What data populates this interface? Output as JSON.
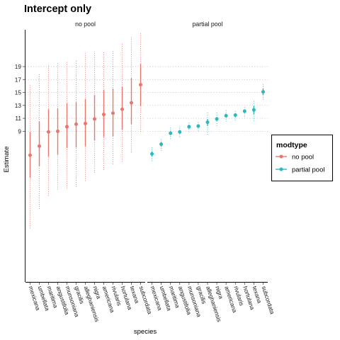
{
  "chart_data": {
    "type": "scatter",
    "title": "Intercept only",
    "xlabel": "species",
    "ylabel": "Estimate",
    "yticks": [
      9,
      11,
      13,
      15,
      17,
      19
    ],
    "ylim": [
      -14.3,
      24.7
    ],
    "grid": "dotted horizontal at y ticks",
    "facets": [
      "no pool",
      "partial pool"
    ],
    "categories": [
      "mexicana",
      "umbellata",
      "maritima",
      "angustifolia",
      "munsoniana",
      "gracilis",
      "alleghaniensis",
      "nigra",
      "americana",
      "rivularis",
      "hortulana",
      "texana",
      "subcordata"
    ],
    "legend": {
      "title": "modtype",
      "position": "right",
      "items": [
        {
          "label": "no pool",
          "color": "#E8766D"
        },
        {
          "label": "partial pool",
          "color": "#2DB8BE"
        }
      ]
    },
    "series": [
      {
        "name": "no pool",
        "facet": "no pool",
        "color": "#E8766D",
        "estimate": [
          5.3,
          6.7,
          8.9,
          9.0,
          9.7,
          10.1,
          10.2,
          10.9,
          11.6,
          11.8,
          12.4,
          13.4,
          16.2
        ],
        "inner_low": [
          1.8,
          3.6,
          5.1,
          5.4,
          6.4,
          6.5,
          6.7,
          7.6,
          8.1,
          8.2,
          9.2,
          10.1,
          12.9
        ],
        "inner_high": [
          8.9,
          10.5,
          12.4,
          12.5,
          13.3,
          13.5,
          14.0,
          14.6,
          15.4,
          15.6,
          15.9,
          17.2,
          19.4
        ],
        "outer_low": [
          -6.0,
          -3.0,
          -1.0,
          0.0,
          0.2,
          0.4,
          1.3,
          2.6,
          3.0,
          3.9,
          4.3,
          5.7,
          8.9
        ],
        "outer_high": [
          16.2,
          17.9,
          19.4,
          19.5,
          19.7,
          20.1,
          21.1,
          21.1,
          21.3,
          21.4,
          22.5,
          23.6,
          24.3
        ]
      },
      {
        "name": "partial pool",
        "facet": "partial pool",
        "color": "#2DB8BE",
        "estimate": [
          5.5,
          7.0,
          8.7,
          8.9,
          9.7,
          9.8,
          10.4,
          10.9,
          11.4,
          11.5,
          12.1,
          12.3,
          15.1
        ],
        "inner_low": [
          5.1,
          6.6,
          8.4,
          8.6,
          9.4,
          9.5,
          9.8,
          10.6,
          11.1,
          11.2,
          11.8,
          11.6,
          14.6
        ],
        "inner_high": [
          5.9,
          7.3,
          9.0,
          9.2,
          10.0,
          10.1,
          10.9,
          11.2,
          11.7,
          11.8,
          12.4,
          12.9,
          15.6
        ],
        "outer_low": [
          4.4,
          6.0,
          7.8,
          8.1,
          8.9,
          9.0,
          8.5,
          9.8,
          10.5,
          10.7,
          11.3,
          10.6,
          13.9
        ],
        "outer_high": [
          6.5,
          7.9,
          9.6,
          9.8,
          10.5,
          10.6,
          12.0,
          12.0,
          12.3,
          12.3,
          12.9,
          13.9,
          16.4
        ]
      }
    ]
  }
}
